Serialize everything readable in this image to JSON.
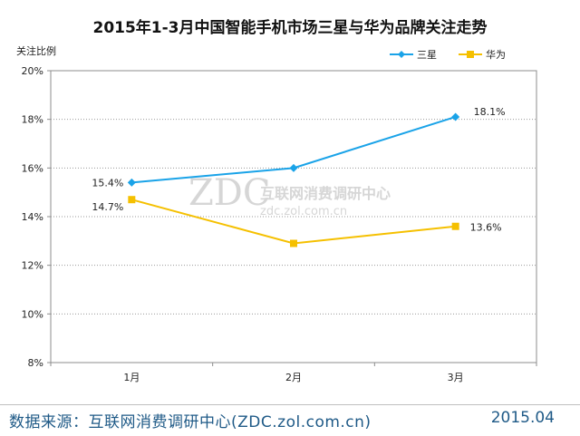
{
  "chart_data": {
    "type": "line",
    "title": "2015年1-3月中国智能手机市场三星与华为品牌关注走势",
    "ylabel": "关注比例",
    "xlabel": "",
    "categories": [
      "1月",
      "2月",
      "3月"
    ],
    "ylim": [
      8,
      20
    ],
    "yticks": [
      8,
      10,
      12,
      14,
      16,
      18,
      20
    ],
    "ytick_labels": [
      "8%",
      "10%",
      "12%",
      "14%",
      "16%",
      "18%",
      "20%"
    ],
    "grid": true,
    "legend_position": "top-right",
    "series": [
      {
        "name": "三星",
        "values": [
          15.4,
          16.0,
          18.1
        ],
        "color": "#1aa3e8",
        "marker": "diamond",
        "data_labels": [
          "15.4%",
          "",
          "18.1%"
        ]
      },
      {
        "name": "华为",
        "values": [
          14.7,
          12.9,
          13.6
        ],
        "color": "#f5c000",
        "marker": "square",
        "data_labels": [
          "14.7%",
          "",
          "13.6%"
        ]
      }
    ]
  },
  "watermark": {
    "logo": "ZDC",
    "org": "互联网消费调研中心",
    "url": "zdc.zol.com.cn"
  },
  "footer": {
    "source": "数据来源：互联网消费调研中心(ZDC.zol.com.cn)",
    "date": "2015.04"
  }
}
